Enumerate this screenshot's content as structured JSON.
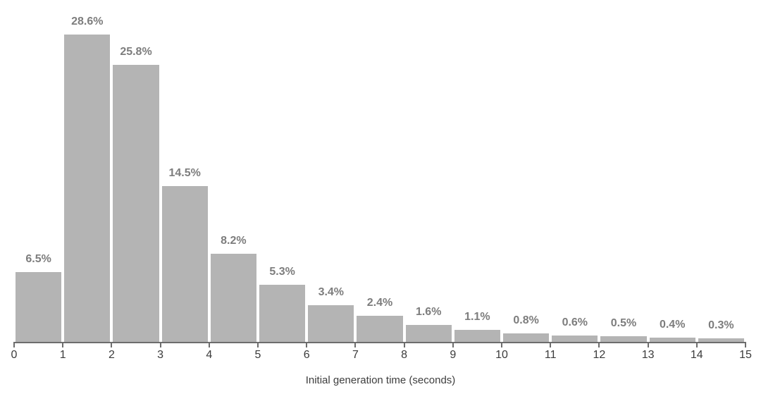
{
  "chart_data": {
    "type": "bar",
    "subtype": "histogram",
    "title": "",
    "xlabel": "Initial generation time (seconds)",
    "ylabel": "",
    "categories": [
      "0-1",
      "1-2",
      "2-3",
      "3-4",
      "4-5",
      "5-6",
      "6-7",
      "7-8",
      "8-9",
      "9-10",
      "10-11",
      "11-12",
      "12-13",
      "13-14",
      "14-15"
    ],
    "values": [
      6.5,
      28.6,
      25.8,
      14.5,
      8.2,
      5.3,
      3.4,
      2.4,
      1.6,
      1.1,
      0.8,
      0.6,
      0.5,
      0.4,
      0.3
    ],
    "value_labels": [
      "6.5%",
      "28.6%",
      "25.8%",
      "14.5%",
      "8.2%",
      "5.3%",
      "3.4%",
      "2.4%",
      "1.6%",
      "1.1%",
      "0.8%",
      "0.6%",
      "0.5%",
      "0.4%",
      "0.3%"
    ],
    "x_tick_labels": [
      "0",
      "1",
      "2",
      "3",
      "4",
      "5",
      "6",
      "7",
      "8",
      "9",
      "10",
      "11",
      "12",
      "13",
      "14",
      "15"
    ],
    "xlim": [
      0,
      15
    ],
    "ylim": [
      0,
      30
    ],
    "grid": false,
    "legend": null,
    "colors": {
      "bar": "#b4b4b4",
      "value_label": "#7d7d7d",
      "axis_line": "#6d6d6d",
      "tick_label": "#3b3b3b",
      "axis_title": "#3d3d3d",
      "background": "#ffffff"
    }
  }
}
